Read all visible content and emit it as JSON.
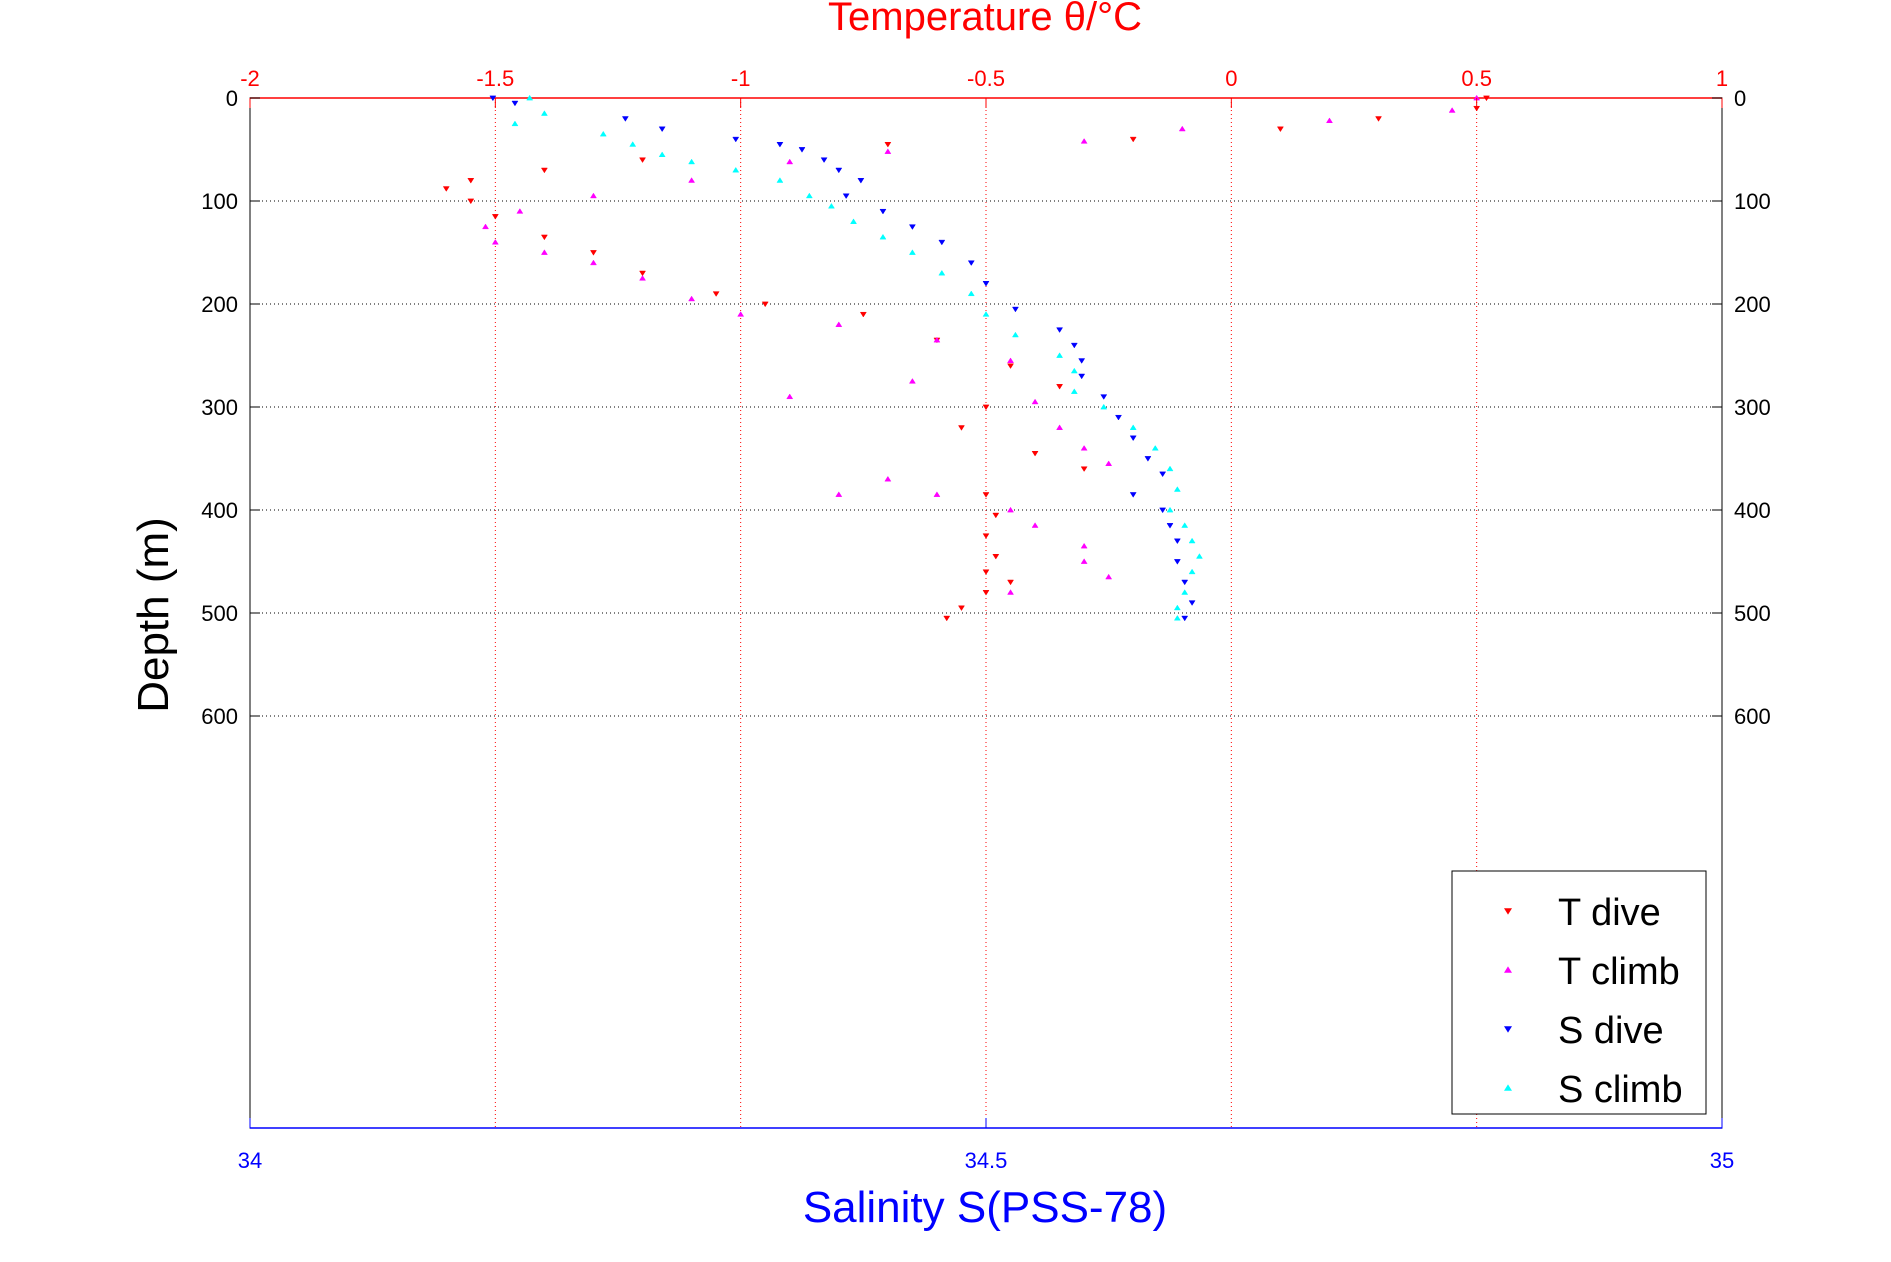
{
  "chart_data": {
    "type": "scatter",
    "title": "Temperature θ/°C",
    "xlabel_bottom": "Salinity S(PSS-78)",
    "ylabel": "Depth (m)",
    "x_top": {
      "label": "Temperature θ/°C",
      "range": [
        -2,
        1
      ],
      "ticks": [
        "-2",
        "-1.5",
        "-1",
        "-0.5",
        "0",
        "0.5",
        "1"
      ],
      "color": "#ff0000"
    },
    "x_bottom": {
      "label": "Salinity S(PSS-78)",
      "range": [
        34,
        35
      ],
      "ticks": [
        "34",
        "34.5",
        "35"
      ],
      "color": "#0000ff"
    },
    "y": {
      "range": [
        0,
        1000
      ],
      "reversed": true,
      "ticks": [
        "0",
        "100",
        "200",
        "300",
        "400",
        "500",
        "600"
      ]
    },
    "grid": "dotted-red",
    "legend_position": "bottom-right",
    "legend": [
      {
        "name": "T dive",
        "color": "#ff0000",
        "marker": "triangle-down"
      },
      {
        "name": "T climb",
        "color": "#ff00ff",
        "marker": "triangle-up"
      },
      {
        "name": "S dive",
        "color": "#0000ff",
        "marker": "triangle-down"
      },
      {
        "name": "S climb",
        "color": "#00ffff",
        "marker": "triangle-up"
      }
    ],
    "series": [
      {
        "name": "T dive",
        "axis": "top",
        "color": "#ff0000",
        "marker": "triangle-down",
        "points": [
          [
            0.52,
            0
          ],
          [
            0.5,
            10
          ],
          [
            0.3,
            20
          ],
          [
            0.1,
            30
          ],
          [
            -0.2,
            40
          ],
          [
            -0.7,
            45
          ],
          [
            -1.2,
            60
          ],
          [
            -1.4,
            70
          ],
          [
            -1.55,
            80
          ],
          [
            -1.6,
            88
          ],
          [
            -1.55,
            100
          ],
          [
            -1.5,
            115
          ],
          [
            -1.4,
            135
          ],
          [
            -1.3,
            150
          ],
          [
            -1.2,
            170
          ],
          [
            -1.05,
            190
          ],
          [
            -0.95,
            200
          ],
          [
            -0.75,
            210
          ],
          [
            -0.6,
            235
          ],
          [
            -0.45,
            260
          ],
          [
            -0.35,
            280
          ],
          [
            -0.5,
            300
          ],
          [
            -0.55,
            320
          ],
          [
            -0.4,
            345
          ],
          [
            -0.3,
            360
          ],
          [
            -0.5,
            385
          ],
          [
            -0.48,
            405
          ],
          [
            -0.5,
            425
          ],
          [
            -0.48,
            445
          ],
          [
            -0.5,
            460
          ],
          [
            -0.45,
            470
          ],
          [
            -0.5,
            480
          ],
          [
            -0.55,
            495
          ],
          [
            -0.58,
            505
          ]
        ]
      },
      {
        "name": "T climb",
        "axis": "top",
        "color": "#ff00ff",
        "marker": "triangle-up",
        "points": [
          [
            0.5,
            0
          ],
          [
            0.45,
            12
          ],
          [
            0.2,
            22
          ],
          [
            -0.1,
            30
          ],
          [
            -0.3,
            42
          ],
          [
            -0.7,
            52
          ],
          [
            -0.9,
            62
          ],
          [
            -1.1,
            80
          ],
          [
            -1.3,
            95
          ],
          [
            -1.45,
            110
          ],
          [
            -1.52,
            125
          ],
          [
            -1.5,
            140
          ],
          [
            -1.4,
            150
          ],
          [
            -1.3,
            160
          ],
          [
            -1.2,
            175
          ],
          [
            -1.1,
            195
          ],
          [
            -1.0,
            210
          ],
          [
            -0.8,
            220
          ],
          [
            -0.6,
            235
          ],
          [
            -0.45,
            255
          ],
          [
            -0.65,
            275
          ],
          [
            -0.9,
            290
          ],
          [
            -0.4,
            295
          ],
          [
            -0.35,
            320
          ],
          [
            -0.3,
            340
          ],
          [
            -0.25,
            355
          ],
          [
            -0.7,
            370
          ],
          [
            -0.8,
            385
          ],
          [
            -0.6,
            385
          ],
          [
            -0.45,
            400
          ],
          [
            -0.4,
            415
          ],
          [
            -0.3,
            435
          ],
          [
            -0.3,
            450
          ],
          [
            -0.25,
            465
          ],
          [
            -0.45,
            480
          ]
        ]
      },
      {
        "name": "S dive",
        "axis": "bottom",
        "color": "#0000ff",
        "marker": "triangle-down",
        "points": [
          [
            34.165,
            0
          ],
          [
            34.18,
            5
          ],
          [
            34.255,
            20
          ],
          [
            34.28,
            30
          ],
          [
            34.33,
            40
          ],
          [
            34.36,
            45
          ],
          [
            34.375,
            50
          ],
          [
            34.39,
            60
          ],
          [
            34.4,
            70
          ],
          [
            34.415,
            80
          ],
          [
            34.405,
            95
          ],
          [
            34.43,
            110
          ],
          [
            34.45,
            125
          ],
          [
            34.47,
            140
          ],
          [
            34.49,
            160
          ],
          [
            34.5,
            180
          ],
          [
            34.52,
            205
          ],
          [
            34.55,
            225
          ],
          [
            34.56,
            240
          ],
          [
            34.565,
            255
          ],
          [
            34.565,
            270
          ],
          [
            34.58,
            290
          ],
          [
            34.59,
            310
          ],
          [
            34.6,
            330
          ],
          [
            34.61,
            350
          ],
          [
            34.62,
            365
          ],
          [
            34.6,
            385
          ],
          [
            34.62,
            400
          ],
          [
            34.625,
            415
          ],
          [
            34.63,
            430
          ],
          [
            34.63,
            450
          ],
          [
            34.635,
            470
          ],
          [
            34.64,
            490
          ],
          [
            34.635,
            505
          ]
        ]
      },
      {
        "name": "S climb",
        "axis": "bottom",
        "color": "#00ffff",
        "marker": "triangle-up",
        "points": [
          [
            34.19,
            0
          ],
          [
            34.2,
            15
          ],
          [
            34.18,
            25
          ],
          [
            34.24,
            35
          ],
          [
            34.26,
            45
          ],
          [
            34.28,
            55
          ],
          [
            34.3,
            62
          ],
          [
            34.33,
            70
          ],
          [
            34.36,
            80
          ],
          [
            34.38,
            95
          ],
          [
            34.395,
            105
          ],
          [
            34.41,
            120
          ],
          [
            34.43,
            135
          ],
          [
            34.45,
            150
          ],
          [
            34.47,
            170
          ],
          [
            34.49,
            190
          ],
          [
            34.5,
            210
          ],
          [
            34.52,
            230
          ],
          [
            34.55,
            250
          ],
          [
            34.56,
            265
          ],
          [
            34.56,
            285
          ],
          [
            34.58,
            300
          ],
          [
            34.6,
            320
          ],
          [
            34.615,
            340
          ],
          [
            34.625,
            360
          ],
          [
            34.63,
            380
          ],
          [
            34.625,
            400
          ],
          [
            34.635,
            415
          ],
          [
            34.64,
            430
          ],
          [
            34.645,
            445
          ],
          [
            34.64,
            460
          ],
          [
            34.635,
            480
          ],
          [
            34.63,
            495
          ],
          [
            34.63,
            505
          ]
        ]
      }
    ]
  }
}
